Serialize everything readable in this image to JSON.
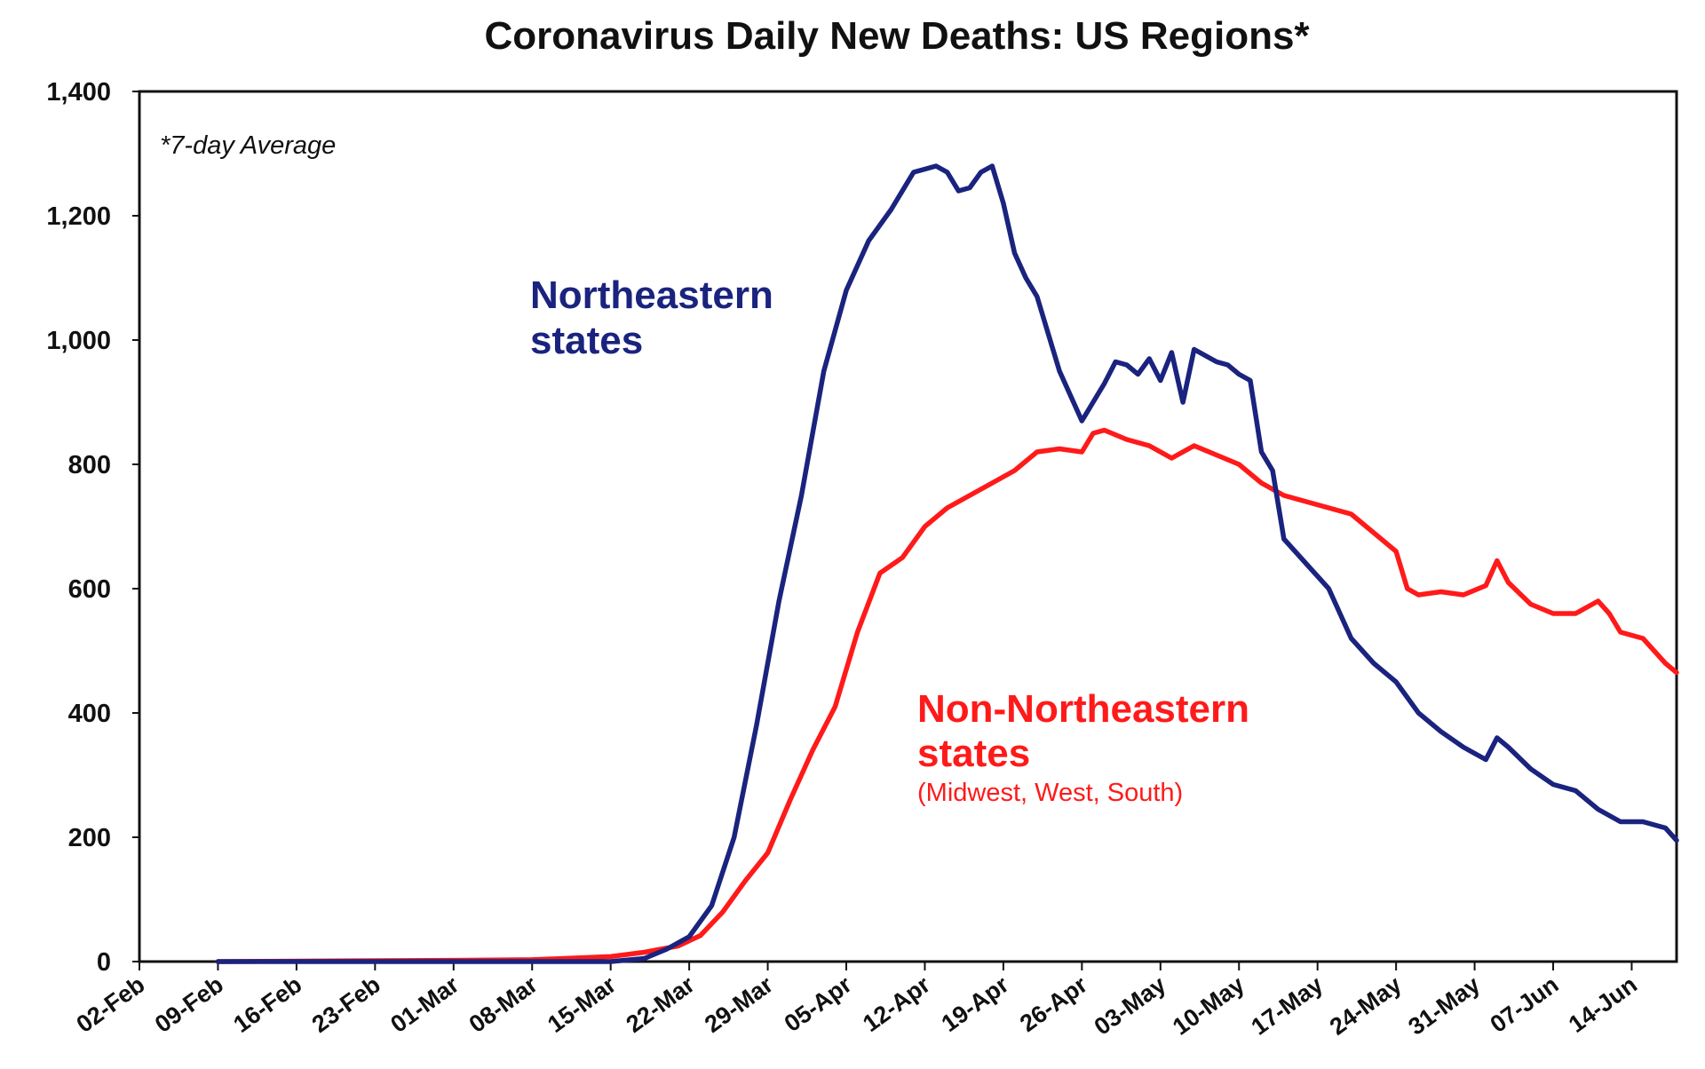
{
  "chart_data": {
    "type": "line",
    "title": "Coronavirus Daily New Deaths: US Regions*",
    "note": "*7-day Average",
    "xlabel": "",
    "ylabel": "",
    "ylim": [
      0,
      1400
    ],
    "yticks": [
      0,
      200,
      400,
      600,
      800,
      1000,
      1200,
      1400
    ],
    "ytick_labels": [
      "0",
      "200",
      "400",
      "600",
      "800",
      "1,000",
      "1,200",
      "1,400"
    ],
    "x_unit": "days since 02-Feb",
    "xlim": [
      0,
      137
    ],
    "xticks": [
      0,
      7,
      14,
      21,
      28,
      35,
      42,
      49,
      56,
      63,
      70,
      77,
      84,
      91,
      98,
      105,
      112,
      119,
      126,
      133
    ],
    "xtick_labels": [
      "02-Feb",
      "09-Feb",
      "16-Feb",
      "23-Feb",
      "01-Mar",
      "08-Mar",
      "15-Mar",
      "22-Mar",
      "29-Mar",
      "05-Apr",
      "12-Apr",
      "19-Apr",
      "26-Apr",
      "03-May",
      "10-May",
      "17-May",
      "24-May",
      "31-May",
      "07-Jun",
      "14-Jun"
    ],
    "grid": false,
    "series": [
      {
        "name": "Northeastern states",
        "label_lines": [
          "Northeastern",
          "states"
        ],
        "color": "#1a237e",
        "x": [
          7,
          42,
          45,
          47,
          49,
          51,
          53,
          55,
          57,
          59,
          61,
          63,
          65,
          67,
          69,
          71,
          72,
          73,
          74,
          75,
          76,
          77,
          78,
          79,
          80,
          82,
          84,
          86,
          87,
          88,
          89,
          90,
          91,
          92,
          93,
          94,
          95,
          96,
          97,
          98,
          99,
          100,
          101,
          102,
          103,
          104,
          105,
          106,
          108,
          110,
          112,
          114,
          116,
          118,
          120,
          121,
          122,
          124,
          126,
          128,
          130,
          132,
          134,
          136,
          137
        ],
        "values": [
          0,
          0,
          5,
          20,
          40,
          90,
          200,
          380,
          580,
          750,
          950,
          1080,
          1160,
          1210,
          1270,
          1280,
          1270,
          1240,
          1245,
          1270,
          1280,
          1220,
          1140,
          1100,
          1070,
          950,
          870,
          930,
          965,
          960,
          945,
          970,
          935,
          980,
          900,
          985,
          975,
          965,
          960,
          945,
          935,
          820,
          790,
          680,
          660,
          640,
          620,
          600,
          520,
          480,
          450,
          400,
          370,
          345,
          325,
          360,
          345,
          310,
          285,
          275,
          245,
          225,
          225,
          215,
          195
        ]
      },
      {
        "name": "Non-Northeastern states",
        "label_lines": [
          "Non-Northeastern",
          "states"
        ],
        "sublabel": "(Midwest, West, South)",
        "color": "#ff1a1a",
        "x": [
          7,
          28,
          35,
          42,
          45,
          48,
          50,
          52,
          54,
          56,
          58,
          60,
          62,
          64,
          66,
          68,
          70,
          72,
          74,
          76,
          78,
          80,
          82,
          84,
          85,
          86,
          88,
          90,
          92,
          94,
          96,
          98,
          100,
          102,
          104,
          106,
          108,
          110,
          112,
          113,
          114,
          116,
          118,
          120,
          121,
          122,
          124,
          126,
          128,
          129,
          130,
          131,
          132,
          134,
          136,
          137
        ],
        "values": [
          0,
          2,
          3,
          8,
          15,
          25,
          42,
          80,
          130,
          175,
          260,
          340,
          410,
          530,
          625,
          650,
          700,
          730,
          750,
          770,
          790,
          820,
          825,
          820,
          850,
          855,
          840,
          830,
          810,
          830,
          815,
          800,
          770,
          750,
          740,
          730,
          720,
          690,
          660,
          600,
          590,
          595,
          590,
          605,
          645,
          610,
          575,
          560,
          560,
          570,
          580,
          560,
          530,
          520,
          480,
          465
        ]
      }
    ]
  }
}
